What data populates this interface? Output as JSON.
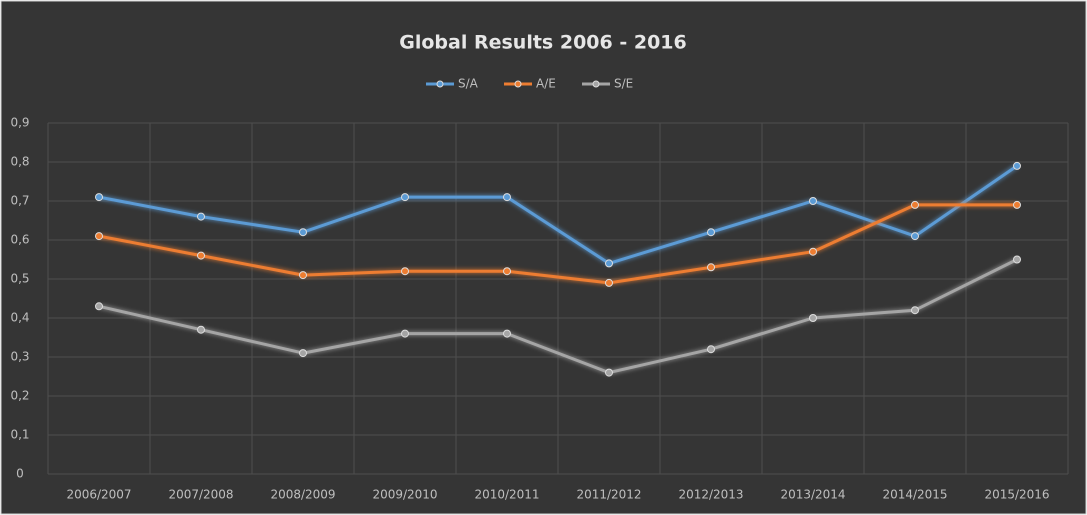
{
  "chart_data": {
    "type": "line",
    "title": "Global Results 2006 - 2016",
    "categories": [
      "2006/2007",
      "2007/2008",
      "2008/2009",
      "2009/2010",
      "2010/2011",
      "2011/2012",
      "2012/2013",
      "2013/2014",
      "2014/2015",
      "2015/2016"
    ],
    "series": [
      {
        "name": "S/A",
        "color": "#5b9bd5",
        "values": [
          0.71,
          0.66,
          0.62,
          0.71,
          0.71,
          0.54,
          0.62,
          0.7,
          0.61,
          0.79
        ]
      },
      {
        "name": "A/E",
        "color": "#ed7d31",
        "values": [
          0.61,
          0.56,
          0.51,
          0.52,
          0.52,
          0.49,
          0.53,
          0.57,
          0.69,
          0.69
        ]
      },
      {
        "name": "S/E",
        "color": "#a5a5a5",
        "values": [
          0.43,
          0.37,
          0.31,
          0.36,
          0.36,
          0.26,
          0.32,
          0.4,
          0.42,
          0.55
        ]
      }
    ],
    "ylim": [
      0,
      0.9
    ],
    "yticks": [
      0,
      {
        "value": 0.1,
        "label": "0,1"
      },
      {
        "value": 0.2,
        "label": "0,2"
      },
      {
        "value": 0.3,
        "label": "0,3"
      },
      {
        "value": 0.4,
        "label": "0,4"
      },
      {
        "value": 0.5,
        "label": "0,5"
      },
      {
        "value": 0.6,
        "label": "0,6"
      },
      {
        "value": 0.7,
        "label": "0,7"
      },
      {
        "value": 0.8,
        "label": "0,8"
      },
      {
        "value": 0.9,
        "label": "0,9"
      }
    ],
    "grid": true,
    "legend": "top"
  }
}
